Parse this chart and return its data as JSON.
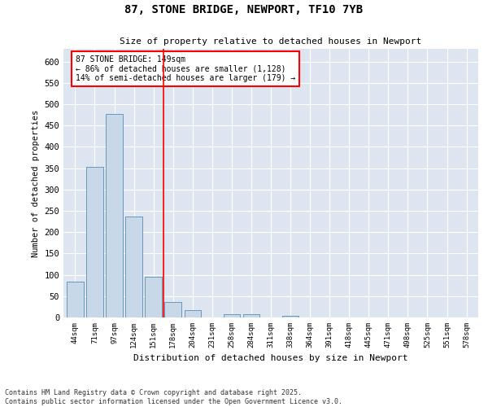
{
  "title_line1": "87, STONE BRIDGE, NEWPORT, TF10 7YB",
  "title_line2": "Size of property relative to detached houses in Newport",
  "xlabel": "Distribution of detached houses by size in Newport",
  "ylabel": "Number of detached properties",
  "bar_color": "#c8d8e8",
  "bar_edge_color": "#6699bb",
  "background_color": "#dde6f0",
  "categories": [
    "44sqm",
    "71sqm",
    "97sqm",
    "124sqm",
    "151sqm",
    "178sqm",
    "204sqm",
    "231sqm",
    "258sqm",
    "284sqm",
    "311sqm",
    "338sqm",
    "364sqm",
    "391sqm",
    "418sqm",
    "445sqm",
    "471sqm",
    "498sqm",
    "525sqm",
    "551sqm",
    "578sqm"
  ],
  "values": [
    84,
    353,
    478,
    237,
    96,
    36,
    17,
    0,
    8,
    7,
    0,
    4,
    0,
    0,
    0,
    0,
    0,
    0,
    0,
    0,
    0
  ],
  "redline_index": 4.5,
  "annotation_text": "87 STONE BRIDGE: 149sqm\n← 86% of detached houses are smaller (1,128)\n14% of semi-detached houses are larger (179) →",
  "ylim": [
    0,
    630
  ],
  "yticks": [
    0,
    50,
    100,
    150,
    200,
    250,
    300,
    350,
    400,
    450,
    500,
    550,
    600
  ],
  "footer_line1": "Contains HM Land Registry data © Crown copyright and database right 2025.",
  "footer_line2": "Contains public sector information licensed under the Open Government Licence v3.0."
}
